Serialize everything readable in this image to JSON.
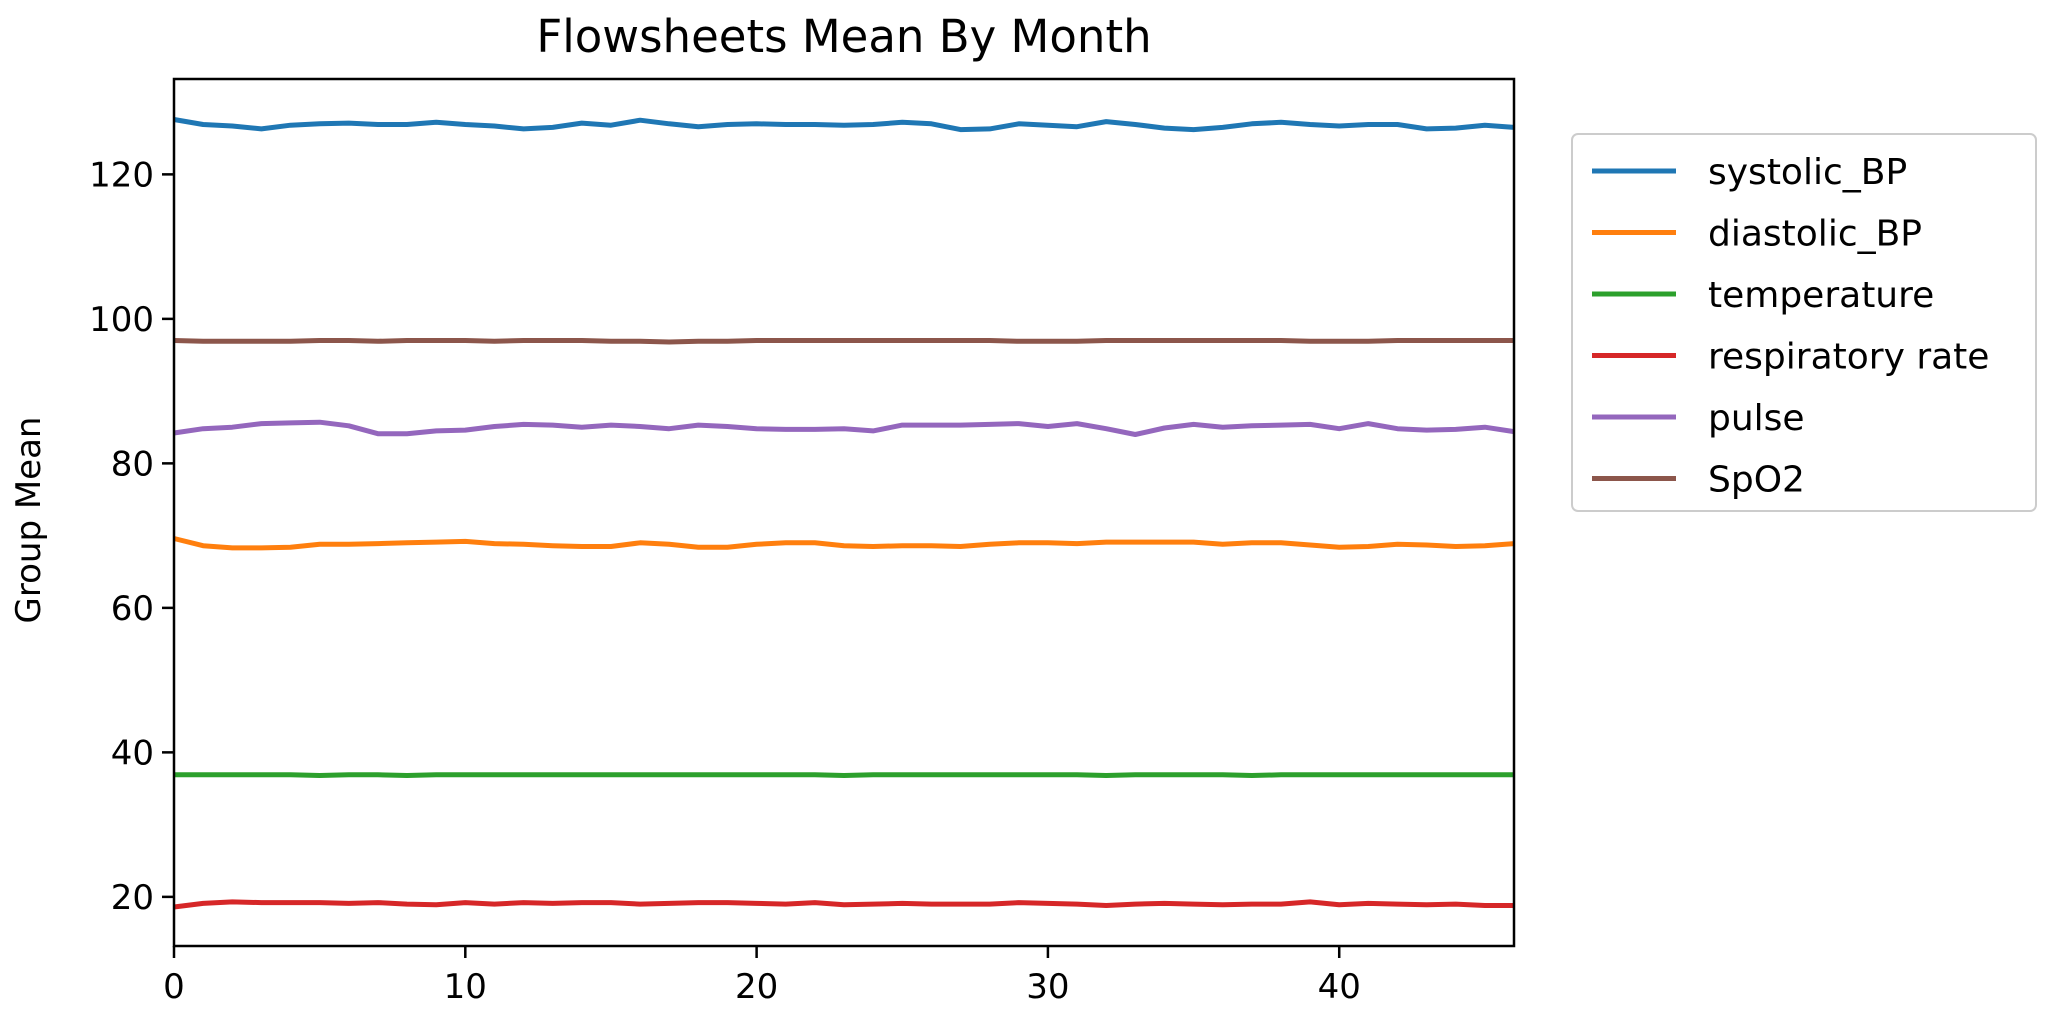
{
  "chart_data": {
    "type": "line",
    "title": "Flowsheets Mean By Month",
    "xlabel": "",
    "ylabel": "Group Mean",
    "xlim": [
      0,
      46
    ],
    "ylim": [
      13.2,
      133.2
    ],
    "x_ticks": [
      0,
      10,
      20,
      30,
      40
    ],
    "y_ticks": [
      20,
      40,
      60,
      80,
      100,
      120
    ],
    "grid": false,
    "legend_position": "outside right",
    "x": [
      0,
      1,
      2,
      3,
      4,
      5,
      6,
      7,
      8,
      9,
      10,
      11,
      12,
      13,
      14,
      15,
      16,
      17,
      18,
      19,
      20,
      21,
      22,
      23,
      24,
      25,
      26,
      27,
      28,
      29,
      30,
      31,
      32,
      33,
      34,
      35,
      36,
      37,
      38,
      39,
      40,
      41,
      42,
      43,
      44,
      45,
      46
    ],
    "series": [
      {
        "name": "systolic_BP",
        "color": "#1f77b4",
        "values": [
          127.6,
          126.9,
          126.7,
          126.3,
          126.8,
          127.0,
          127.1,
          126.9,
          126.9,
          127.2,
          126.9,
          126.7,
          126.3,
          126.5,
          127.1,
          126.8,
          127.5,
          127.0,
          126.6,
          126.9,
          127.0,
          126.9,
          126.9,
          126.8,
          126.9,
          127.2,
          127.0,
          126.2,
          126.3,
          127.0,
          126.8,
          126.6,
          127.3,
          126.9,
          126.4,
          126.2,
          126.5,
          127.0,
          127.2,
          126.9,
          126.7,
          126.9,
          126.9,
          126.3,
          126.4,
          126.8,
          126.5
        ]
      },
      {
        "name": "diastolic_BP",
        "color": "#ff7f0e",
        "values": [
          69.6,
          68.6,
          68.3,
          68.3,
          68.4,
          68.8,
          68.8,
          68.9,
          69.0,
          69.1,
          69.2,
          68.9,
          68.8,
          68.6,
          68.5,
          68.5,
          69.0,
          68.8,
          68.4,
          68.4,
          68.8,
          69.0,
          69.0,
          68.6,
          68.5,
          68.6,
          68.6,
          68.5,
          68.8,
          69.0,
          69.0,
          68.9,
          69.1,
          69.1,
          69.1,
          69.1,
          68.8,
          69.0,
          69.0,
          68.7,
          68.4,
          68.5,
          68.8,
          68.7,
          68.5,
          68.6,
          68.9
        ]
      },
      {
        "name": "temperature",
        "color": "#2ca02c",
        "values": [
          36.9,
          36.9,
          36.9,
          36.9,
          36.9,
          36.8,
          36.9,
          36.9,
          36.8,
          36.9,
          36.9,
          36.9,
          36.9,
          36.9,
          36.9,
          36.9,
          36.9,
          36.9,
          36.9,
          36.9,
          36.9,
          36.9,
          36.9,
          36.8,
          36.9,
          36.9,
          36.9,
          36.9,
          36.9,
          36.9,
          36.9,
          36.9,
          36.8,
          36.9,
          36.9,
          36.9,
          36.9,
          36.8,
          36.9,
          36.9,
          36.9,
          36.9,
          36.9,
          36.9,
          36.9,
          36.9,
          36.9
        ]
      },
      {
        "name": "respiratory rate",
        "color": "#d62728",
        "values": [
          18.6,
          19.1,
          19.3,
          19.2,
          19.2,
          19.2,
          19.1,
          19.2,
          19.0,
          18.9,
          19.2,
          19.0,
          19.2,
          19.1,
          19.2,
          19.2,
          19.0,
          19.1,
          19.2,
          19.2,
          19.1,
          19.0,
          19.2,
          18.9,
          19.0,
          19.1,
          19.0,
          19.0,
          19.0,
          19.2,
          19.1,
          19.0,
          18.8,
          19.0,
          19.1,
          19.0,
          18.9,
          19.0,
          19.0,
          19.3,
          18.9,
          19.1,
          19.0,
          18.9,
          19.0,
          18.8,
          18.8
        ]
      },
      {
        "name": "pulse",
        "color": "#9467bd",
        "values": [
          84.2,
          84.8,
          85.0,
          85.5,
          85.6,
          85.7,
          85.2,
          84.1,
          84.1,
          84.5,
          84.6,
          85.1,
          85.4,
          85.3,
          85.0,
          85.3,
          85.1,
          84.8,
          85.3,
          85.1,
          84.8,
          84.7,
          84.7,
          84.8,
          84.5,
          85.3,
          85.3,
          85.3,
          85.4,
          85.5,
          85.1,
          85.5,
          84.8,
          84.0,
          84.9,
          85.4,
          85.0,
          85.2,
          85.3,
          85.4,
          84.8,
          85.5,
          84.8,
          84.6,
          84.7,
          85.0,
          84.4
        ]
      },
      {
        "name": "SpO2",
        "color": "#8c564b",
        "values": [
          97.0,
          96.9,
          96.9,
          96.9,
          96.9,
          97.0,
          97.0,
          96.9,
          97.0,
          97.0,
          97.0,
          96.9,
          97.0,
          97.0,
          97.0,
          96.9,
          96.9,
          96.8,
          96.9,
          96.9,
          97.0,
          97.0,
          97.0,
          97.0,
          97.0,
          97.0,
          97.0,
          97.0,
          97.0,
          96.9,
          96.9,
          96.9,
          97.0,
          97.0,
          97.0,
          97.0,
          97.0,
          97.0,
          97.0,
          96.9,
          96.9,
          96.9,
          97.0,
          97.0,
          97.0,
          97.0,
          97.0
        ]
      }
    ]
  }
}
